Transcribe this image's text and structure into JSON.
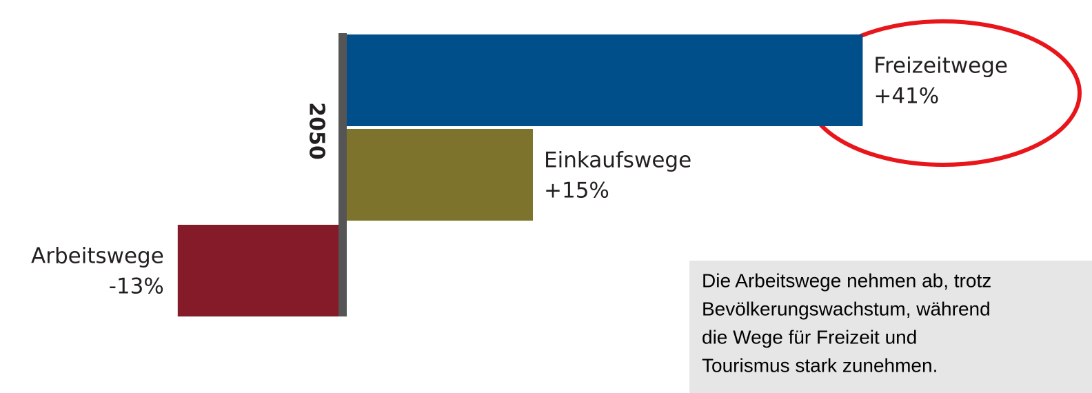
{
  "chart_data": {
    "type": "bar",
    "orientation": "horizontal",
    "axis_label": "2050",
    "categories": [
      "Freizeitwege",
      "Einkaufswege",
      "Arbeitswege"
    ],
    "values": [
      41,
      15,
      -13
    ],
    "value_labels": [
      "+41%",
      "+15%",
      "-13%"
    ],
    "colors": [
      "#004f8a",
      "#7d732c",
      "#851a28"
    ],
    "annotation_lines": [
      "Die Arbeitswege nehmen ab, trotz",
      "Bevölkerungswachstum, während",
      "die Wege für Freizeit und",
      "Tourismus stark zunehmen."
    ]
  }
}
